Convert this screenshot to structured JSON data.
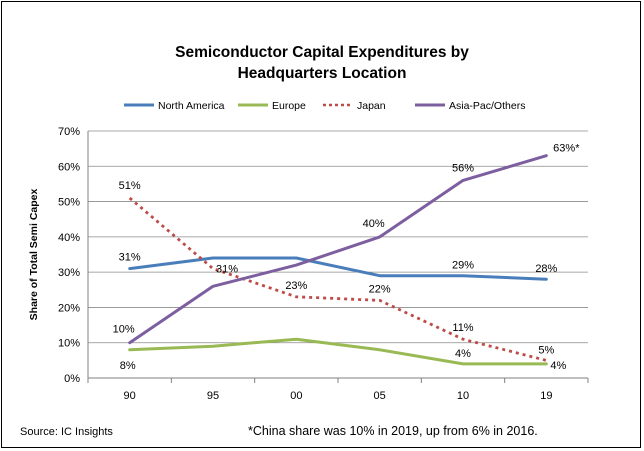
{
  "chart_data": {
    "type": "line",
    "title_lines": [
      "Semiconductor Capital Expenditures by",
      "Headquarters Location"
    ],
    "xlabel": "",
    "ylabel": "Share of Total Semi Capex",
    "categories": [
      "90",
      "95",
      "00",
      "05",
      "10",
      "19"
    ],
    "ylim": [
      0,
      70
    ],
    "yticks": [
      "0%",
      "10%",
      "20%",
      "30%",
      "40%",
      "50%",
      "60%",
      "70%"
    ],
    "grid": true,
    "legend_position": "top",
    "series": [
      {
        "name": "North America",
        "color": "#4a7ebb",
        "dash": "solid",
        "values": [
          31,
          34,
          34,
          29,
          29,
          28
        ],
        "labels": [
          "31%",
          "",
          "",
          "",
          "29%",
          "28%"
        ]
      },
      {
        "name": "Europe",
        "color": "#98b954",
        "dash": "solid",
        "values": [
          8,
          9,
          11,
          8,
          4,
          4
        ],
        "labels": [
          "8%",
          "",
          "",
          "",
          "4%",
          "4%"
        ]
      },
      {
        "name": "Japan",
        "color": "#be4b48",
        "dash": "dotted",
        "values": [
          51,
          31,
          23,
          22,
          11,
          5
        ],
        "labels": [
          "51%",
          "31%",
          "23%",
          "22%",
          "11%",
          "5%"
        ]
      },
      {
        "name": "Asia-Pac/Others",
        "color": "#7d5fa0",
        "dash": "solid",
        "values": [
          10,
          26,
          32,
          40,
          56,
          63
        ],
        "labels": [
          "10%",
          "",
          "",
          "40%",
          "56%",
          "63%*"
        ]
      }
    ]
  },
  "footer": {
    "source": "Source:  IC Insights",
    "note": "*China share was 10% in 2019, up from 6% in 2016."
  }
}
